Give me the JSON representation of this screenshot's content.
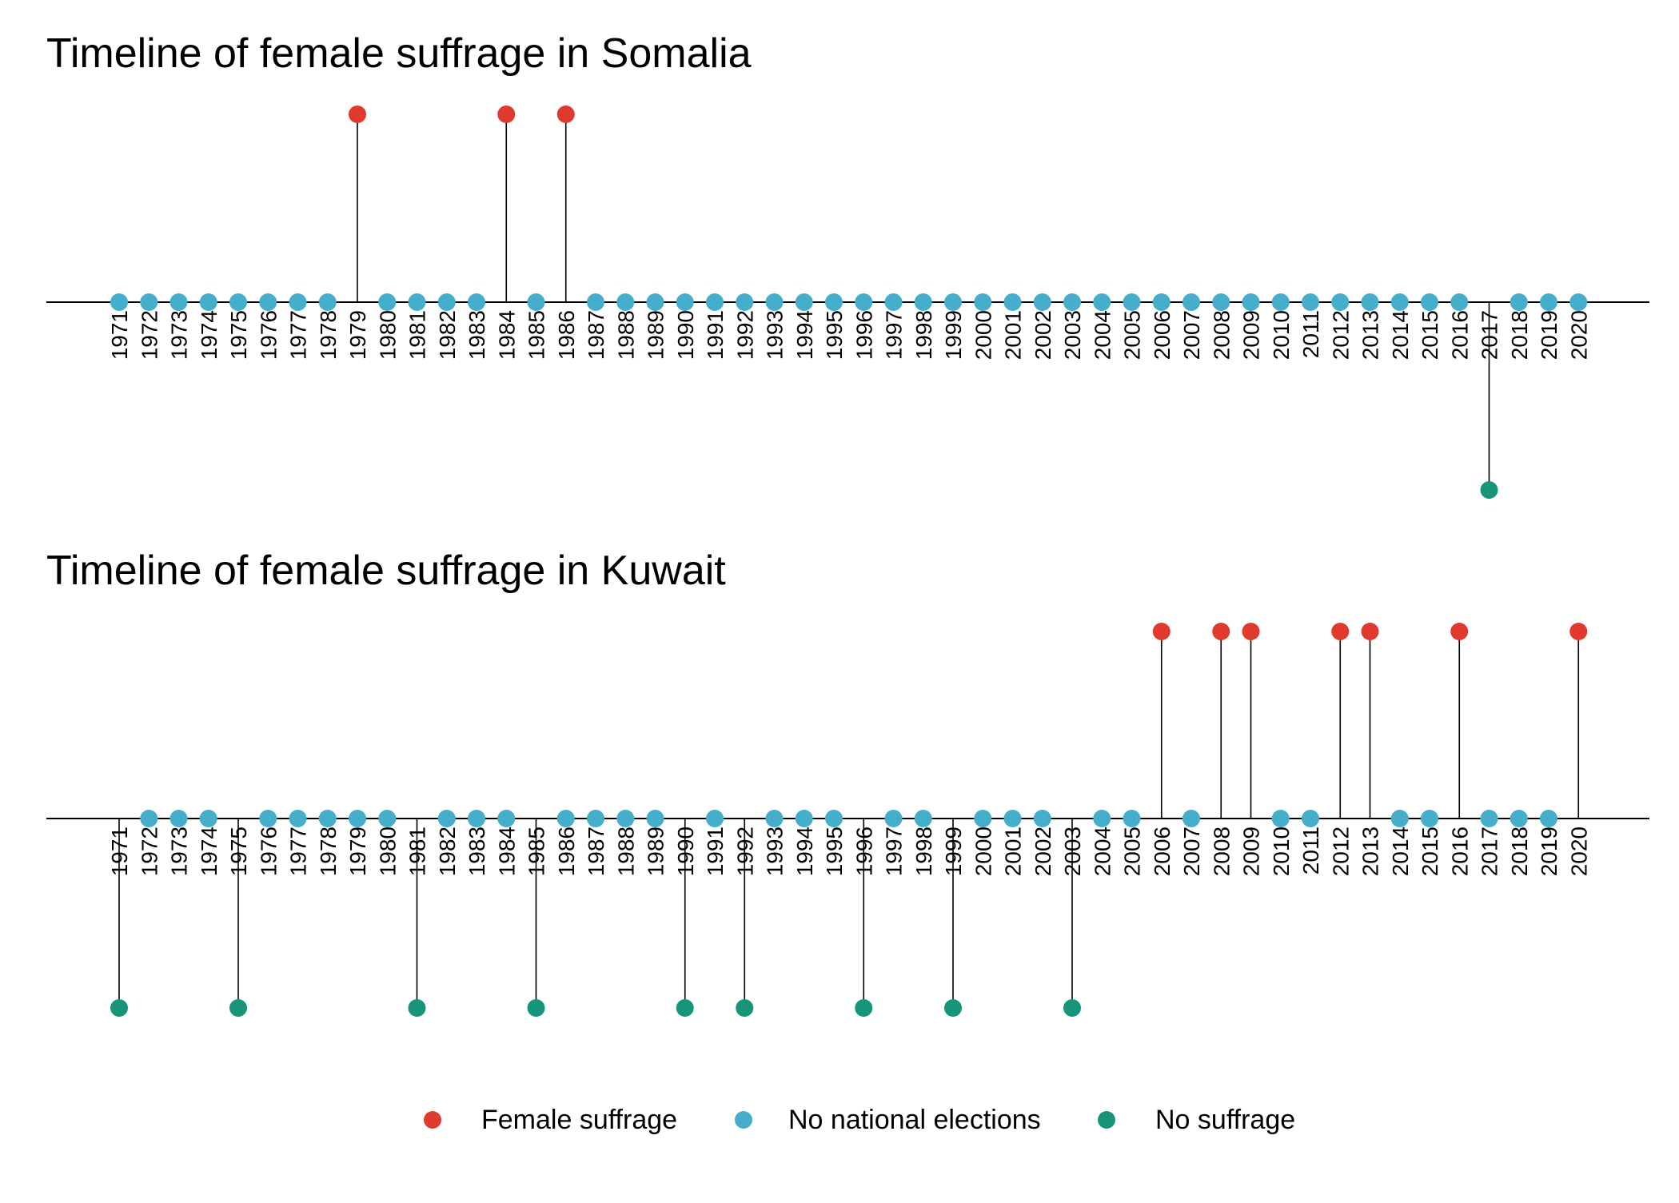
{
  "colors": {
    "Female suffrage": "#E03A2F",
    "No national elections": "#45AECB",
    "No suffrage": "#16957A"
  },
  "legend": {
    "placement": "bottom",
    "items": [
      "Female suffrage",
      "No national elections",
      "No suffrage"
    ]
  },
  "chart_data": [
    {
      "type": "scatter",
      "style": "lollipop-timeline",
      "title": "Timeline of female suffrage in Somalia",
      "x": [
        1971,
        1972,
        1973,
        1974,
        1975,
        1976,
        1977,
        1978,
        1979,
        1980,
        1981,
        1982,
        1983,
        1984,
        1985,
        1986,
        1987,
        1988,
        1989,
        1990,
        1991,
        1992,
        1993,
        1994,
        1995,
        1996,
        1997,
        1998,
        1999,
        2000,
        2001,
        2002,
        2003,
        2004,
        2005,
        2006,
        2007,
        2008,
        2009,
        2010,
        2011,
        2012,
        2013,
        2014,
        2015,
        2016,
        2017,
        2018,
        2019,
        2020
      ],
      "categories_by_year": [
        "No national elections",
        "No national elections",
        "No national elections",
        "No national elections",
        "No national elections",
        "No national elections",
        "No national elections",
        "No national elections",
        "Female suffrage",
        "No national elections",
        "No national elections",
        "No national elections",
        "No national elections",
        "Female suffrage",
        "No national elections",
        "Female suffrage",
        "No national elections",
        "No national elections",
        "No national elections",
        "No national elections",
        "No national elections",
        "No national elections",
        "No national elections",
        "No national elections",
        "No national elections",
        "No national elections",
        "No national elections",
        "No national elections",
        "No national elections",
        "No national elections",
        "No national elections",
        "No national elections",
        "No national elections",
        "No national elections",
        "No national elections",
        "No national elections",
        "No national elections",
        "No national elections",
        "No national elections",
        "No national elections",
        "No national elections",
        "No national elections",
        "No national elections",
        "No national elections",
        "No national elections",
        "No national elections",
        "No suffrage",
        "No national elections",
        "No national elections",
        "No national elections"
      ],
      "xlabel": "",
      "ylabel": "",
      "grid": false
    },
    {
      "type": "scatter",
      "style": "lollipop-timeline",
      "title": "Timeline of female suffrage in Kuwait",
      "x": [
        1971,
        1972,
        1973,
        1974,
        1975,
        1976,
        1977,
        1978,
        1979,
        1980,
        1981,
        1982,
        1983,
        1984,
        1985,
        1986,
        1987,
        1988,
        1989,
        1990,
        1991,
        1992,
        1993,
        1994,
        1995,
        1996,
        1997,
        1998,
        1999,
        2000,
        2001,
        2002,
        2003,
        2004,
        2005,
        2006,
        2007,
        2008,
        2009,
        2010,
        2011,
        2012,
        2013,
        2014,
        2015,
        2016,
        2017,
        2018,
        2019,
        2020
      ],
      "categories_by_year": [
        "No suffrage",
        "No national elections",
        "No national elections",
        "No national elections",
        "No suffrage",
        "No national elections",
        "No national elections",
        "No national elections",
        "No national elections",
        "No national elections",
        "No suffrage",
        "No national elections",
        "No national elections",
        "No national elections",
        "No suffrage",
        "No national elections",
        "No national elections",
        "No national elections",
        "No national elections",
        "No suffrage",
        "No national elections",
        "No suffrage",
        "No national elections",
        "No national elections",
        "No national elections",
        "No suffrage",
        "No national elections",
        "No national elections",
        "No suffrage",
        "No national elections",
        "No national elections",
        "No national elections",
        "No suffrage",
        "No national elections",
        "No national elections",
        "Female suffrage",
        "No national elections",
        "Female suffrage",
        "Female suffrage",
        "No national elections",
        "No national elections",
        "Female suffrage",
        "Female suffrage",
        "No national elections",
        "No national elections",
        "Female suffrage",
        "No national elections",
        "No national elections",
        "No national elections",
        "Female suffrage"
      ],
      "xlabel": "",
      "ylabel": "",
      "grid": false
    }
  ]
}
